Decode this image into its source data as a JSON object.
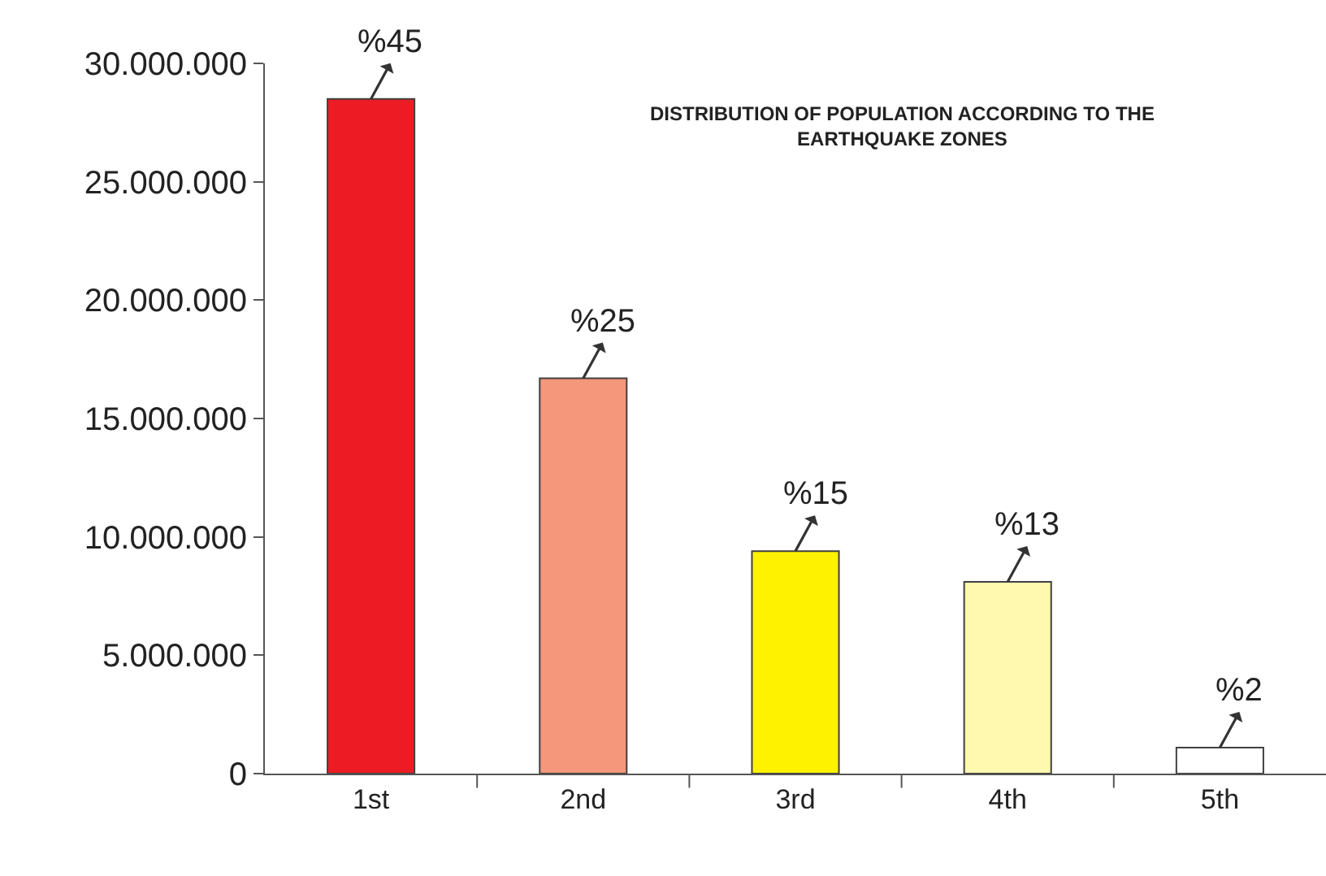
{
  "chart_data": {
    "type": "bar",
    "title": "DISTRIBUTION OF POPULATION ACCORDING TO THE EARTHQUAKE ZONES",
    "categories": [
      "1st",
      "2nd",
      "3rd",
      "4th",
      "5th"
    ],
    "values": [
      28500000,
      16700000,
      9400000,
      8100000,
      1100000
    ],
    "annotations": [
      {
        "text": "%45",
        "x": "1st",
        "y": 28500000
      },
      {
        "text": "%25",
        "x": "2nd",
        "y": 16700000
      },
      {
        "text": "%15",
        "x": "3rd",
        "y": 9400000
      },
      {
        "text": "%13",
        "x": "4th",
        "y": 8100000
      },
      {
        "text": "%2",
        "x": "5th",
        "y": 1100000
      }
    ],
    "colors": [
      "#ed1c24",
      "#f4977a",
      "#fff200",
      "#fff9b0",
      "#ffffff"
    ],
    "ylim": [
      0,
      30000000
    ],
    "yticks": [
      {
        "value": 0,
        "label": "0"
      },
      {
        "value": 5000000,
        "label": "5.000.000"
      },
      {
        "value": 10000000,
        "label": "10.000.000"
      },
      {
        "value": 15000000,
        "label": "15.000.000"
      },
      {
        "value": 20000000,
        "label": "20.000.000"
      },
      {
        "value": 25000000,
        "label": "25.000.000"
      },
      {
        "value": 30000000,
        "label": "30.000.000"
      }
    ],
    "grid": false
  }
}
